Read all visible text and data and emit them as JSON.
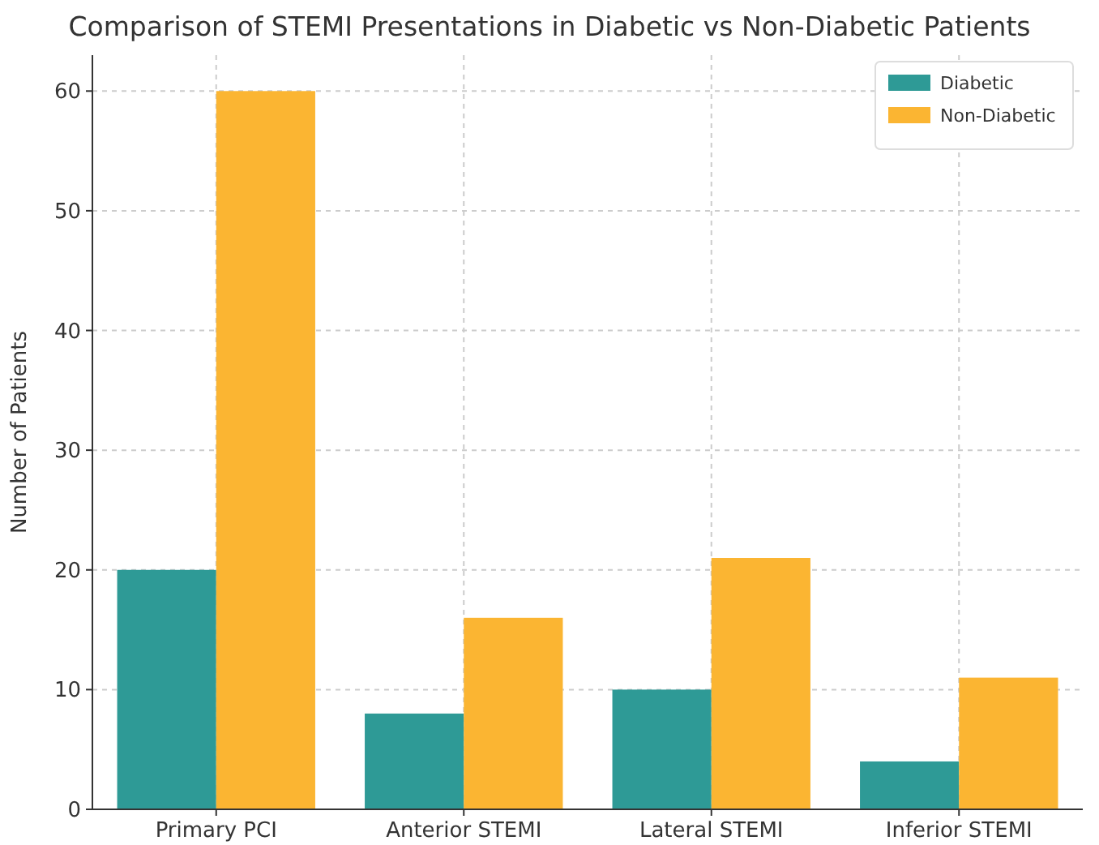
{
  "chart_data": {
    "type": "bar",
    "title": "Comparison of STEMI Presentations in Diabetic vs Non-Diabetic Patients",
    "ylabel": "Number of Patients",
    "categories": [
      "Primary PCI",
      "Anterior STEMI",
      "Lateral STEMI",
      "Inferior STEMI"
    ],
    "series": [
      {
        "name": "Diabetic",
        "color": "#2e9a96",
        "values": [
          20,
          8,
          10,
          4
        ]
      },
      {
        "name": "Non-Diabetic",
        "color": "#fbb532",
        "values": [
          60,
          16,
          21,
          11
        ]
      }
    ],
    "ylim": [
      0,
      63
    ],
    "yticks": [
      0,
      10,
      20,
      30,
      40,
      50,
      60
    ],
    "grid": true,
    "legend": "top right"
  }
}
